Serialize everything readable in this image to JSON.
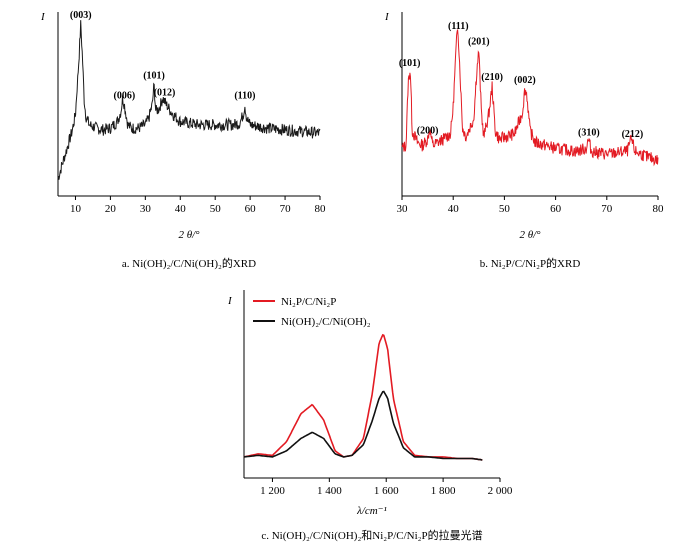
{
  "chart_data": [
    {
      "type": "line",
      "panel": "a",
      "caption": "a.  Ni(OH)₂/C/Ni(OH)₂的XRD",
      "ylabel": "I",
      "xlabel": "2 θ/°",
      "xlim": [
        5,
        80
      ],
      "xticks": [
        "10",
        "20",
        "30",
        "40",
        "50",
        "60",
        "70",
        "80"
      ],
      "grid": false,
      "series": [
        {
          "color": "#1a1a1a",
          "x": [
            5,
            7,
            9,
            10,
            11,
            11.5,
            12,
            12.5,
            13,
            14,
            16,
            18,
            20,
            22,
            23,
            23.5,
            24,
            24.5,
            25,
            26,
            28,
            30,
            31,
            32,
            32.5,
            33,
            34,
            35,
            36,
            38,
            40,
            45,
            50,
            55,
            57,
            58,
            58.5,
            59,
            60,
            65,
            70,
            75,
            80
          ],
          "values": [
            8,
            22,
            36,
            46,
            80,
            100,
            80,
            55,
            45,
            40,
            38,
            37,
            38,
            42,
            48,
            56,
            52,
            46,
            40,
            38,
            38,
            40,
            44,
            52,
            64,
            48,
            50,
            56,
            52,
            46,
            42,
            40,
            40,
            40,
            41,
            46,
            52,
            44,
            40,
            38,
            37,
            36,
            35
          ]
        }
      ],
      "annotations": [
        {
          "label": "(003)",
          "x": 11.5
        },
        {
          "label": "(006)",
          "x": 24
        },
        {
          "label": "(101)",
          "x": 32.5
        },
        {
          "label": "(012)",
          "x": 35.5
        },
        {
          "label": "(110)",
          "x": 58.5
        }
      ]
    },
    {
      "type": "line",
      "panel": "b",
      "caption": "b.  Ni₂P/C/Ni₂P的XRD",
      "ylabel": "I",
      "xlabel": "2 θ/°",
      "xlim": [
        30,
        80
      ],
      "xticks": [
        "30",
        "40",
        "50",
        "60",
        "70",
        "80"
      ],
      "grid": false,
      "series": [
        {
          "color": "#e31b23",
          "x": [
            30,
            30.8,
            31.2,
            31.6,
            32,
            33,
            34,
            35,
            35.4,
            36,
            38,
            39.5,
            40,
            40.5,
            40.9,
            41.3,
            41.8,
            42.5,
            44,
            44.6,
            45,
            45.5,
            46,
            47,
            47.6,
            48.2,
            49,
            52,
            53.5,
            54,
            54.4,
            55,
            56,
            60,
            64,
            66,
            66.4,
            67,
            70,
            74,
            74.8,
            75.5,
            78,
            80
          ],
          "values": [
            16,
            18,
            60,
            70,
            28,
            20,
            18,
            22,
            30,
            18,
            22,
            26,
            44,
            80,
            100,
            70,
            30,
            24,
            36,
            68,
            82,
            40,
            24,
            40,
            58,
            28,
            22,
            26,
            40,
            56,
            52,
            28,
            20,
            16,
            14,
            16,
            22,
            14,
            12,
            14,
            22,
            14,
            10,
            8
          ]
        }
      ],
      "annotations": [
        {
          "label": "(101)",
          "x": 31.5
        },
        {
          "label": "(200)",
          "x": 35
        },
        {
          "label": "(111)",
          "x": 41
        },
        {
          "label": "(201)",
          "x": 45
        },
        {
          "label": "(210)",
          "x": 47.6
        },
        {
          "label": "(002)",
          "x": 54
        },
        {
          "label": "(310)",
          "x": 66.5
        },
        {
          "label": "(212)",
          "x": 75
        }
      ]
    },
    {
      "type": "line",
      "panel": "c",
      "caption": "c.  Ni(OH)₂/C/Ni(OH)₂和Ni₂P/C/Ni₂P的拉曼光谱",
      "ylabel": "I",
      "xlabel": "λ/cm⁻¹",
      "xlim": [
        1100,
        2000
      ],
      "xticks": [
        "1 200",
        "1 400",
        "1 600",
        "1 800",
        "2 000"
      ],
      "grid": false,
      "legend": "top-left",
      "series": [
        {
          "name": "Ni₂P/C/Ni₂P",
          "color": "#e31b23",
          "x": [
            1100,
            1150,
            1200,
            1250,
            1300,
            1340,
            1380,
            1420,
            1450,
            1480,
            1520,
            1550,
            1575,
            1590,
            1605,
            1625,
            1660,
            1700,
            1750,
            1800,
            1850,
            1900,
            1940
          ],
          "values": [
            2,
            4,
            3,
            12,
            30,
            36,
            26,
            6,
            2,
            3,
            14,
            42,
            76,
            82,
            72,
            40,
            12,
            3,
            2,
            2,
            1,
            1,
            0
          ]
        },
        {
          "name": "Ni(OH)₂/C/Ni(OH)₂",
          "color": "#111111",
          "x": [
            1100,
            1150,
            1200,
            1250,
            1300,
            1340,
            1380,
            1420,
            1450,
            1480,
            1520,
            1550,
            1575,
            1590,
            1605,
            1625,
            1660,
            1700,
            1750,
            1800,
            1850,
            1900,
            1940
          ],
          "values": [
            2,
            3,
            2,
            6,
            14,
            18,
            14,
            4,
            2,
            3,
            10,
            25,
            40,
            45,
            40,
            24,
            8,
            2,
            2,
            1,
            1,
            1,
            0
          ]
        }
      ]
    }
  ]
}
